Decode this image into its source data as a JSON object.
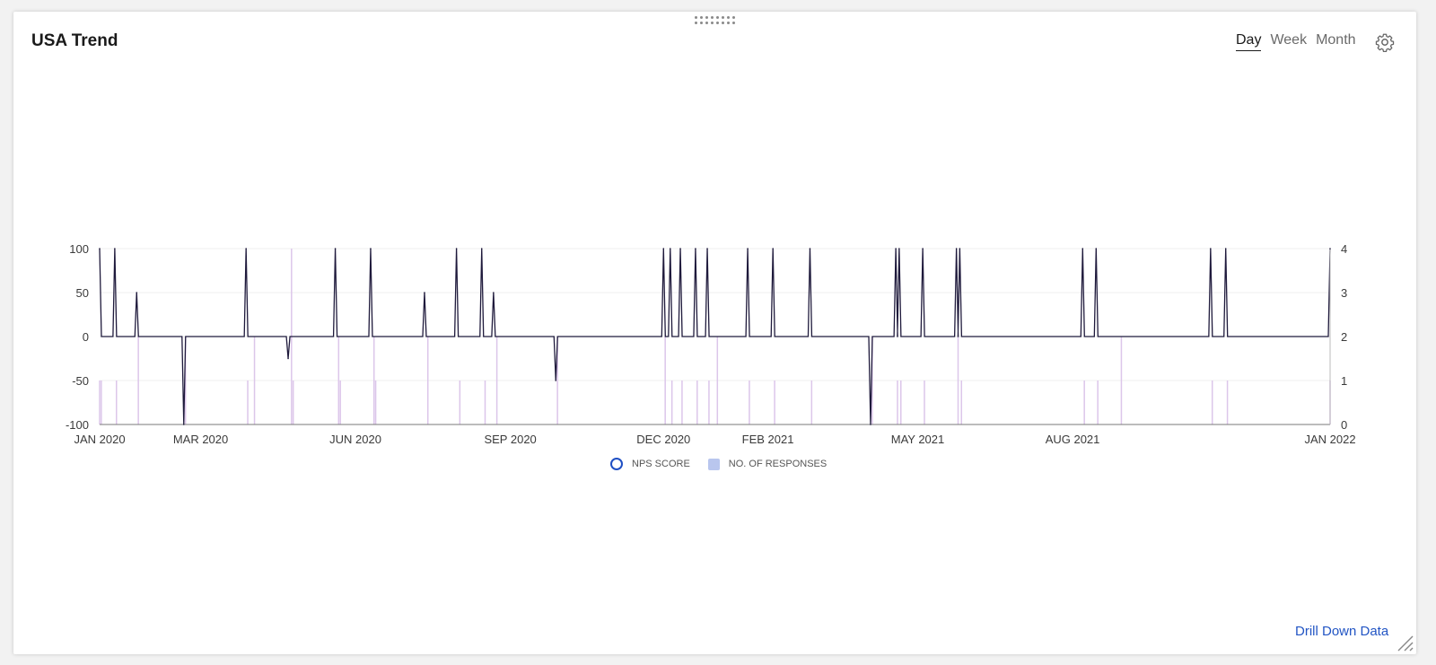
{
  "widget": {
    "title": "USA Trend",
    "periods": [
      {
        "label": "Day",
        "active": true
      },
      {
        "label": "Week",
        "active": false
      },
      {
        "label": "Month",
        "active": false
      }
    ],
    "settings_icon": "gear-icon",
    "drag_icon": "drag-handle-icon",
    "resize_icon": "resize-handle-icon",
    "drill_down_label": "Drill Down Data",
    "colors": {
      "nps_line": "#1f1a3c",
      "responses_bar": "#dcc6ea",
      "legend_nps": "#1f4fc4",
      "legend_responses": "#b9c6ee",
      "link": "#2255c4"
    }
  },
  "chart_data": {
    "type": "line",
    "xlim": [
      "2020-01-01",
      "2022-01-01"
    ],
    "x_ticks": [
      "JAN 2020",
      "MAR 2020",
      "JUN 2020",
      "SEP 2020",
      "DEC 2020",
      "FEB 2021",
      "MAY 2021",
      "AUG 2021",
      "JAN 2022"
    ],
    "x_tick_dates": [
      "2020-01-01",
      "2020-03-01",
      "2020-06-01",
      "2020-09-01",
      "2020-12-01",
      "2021-02-01",
      "2021-05-01",
      "2021-08-01",
      "2022-01-01"
    ],
    "y_left": {
      "ticks": [
        100,
        50,
        0,
        -50,
        -100
      ],
      "ylim": [
        -100,
        100
      ]
    },
    "y_right": {
      "ticks": [
        4,
        3,
        2,
        1,
        0
      ],
      "ylim": [
        0,
        4
      ]
    },
    "legend": [
      "NPS SCORE",
      "NO. OF RESPONSES"
    ],
    "legend_position": "bottom-center",
    "grid": true,
    "series": [
      {
        "name": "NPS SCORE",
        "axis": "left",
        "points": [
          {
            "date": "2020-01-01",
            "value": 100
          },
          {
            "date": "2020-01-10",
            "value": 100
          },
          {
            "date": "2020-01-23",
            "value": 50
          },
          {
            "date": "2020-02-20",
            "value": -100
          },
          {
            "date": "2020-03-28",
            "value": 100
          },
          {
            "date": "2020-04-22",
            "value": -25
          },
          {
            "date": "2020-05-20",
            "value": 100
          },
          {
            "date": "2020-06-10",
            "value": 100
          },
          {
            "date": "2020-07-12",
            "value": 50
          },
          {
            "date": "2020-07-31",
            "value": 100
          },
          {
            "date": "2020-08-15",
            "value": 100
          },
          {
            "date": "2020-08-22",
            "value": 50
          },
          {
            "date": "2020-09-28",
            "value": -50
          },
          {
            "date": "2020-12-01",
            "value": 100
          },
          {
            "date": "2020-12-05",
            "value": 100
          },
          {
            "date": "2020-12-11",
            "value": 100
          },
          {
            "date": "2020-12-20",
            "value": 100
          },
          {
            "date": "2020-12-27",
            "value": 100
          },
          {
            "date": "2021-01-20",
            "value": 100
          },
          {
            "date": "2021-02-04",
            "value": 100
          },
          {
            "date": "2021-02-26",
            "value": 100
          },
          {
            "date": "2021-04-03",
            "value": -100
          },
          {
            "date": "2021-04-18",
            "value": 100
          },
          {
            "date": "2021-04-20",
            "value": 100
          },
          {
            "date": "2021-05-04",
            "value": 100
          },
          {
            "date": "2021-05-24",
            "value": 100
          },
          {
            "date": "2021-05-26",
            "value": 100
          },
          {
            "date": "2021-08-07",
            "value": 100
          },
          {
            "date": "2021-08-15",
            "value": 100
          },
          {
            "date": "2021-10-22",
            "value": 100
          },
          {
            "date": "2021-10-31",
            "value": 100
          },
          {
            "date": "2022-01-01",
            "value": 100
          }
        ]
      },
      {
        "name": "NO. OF RESPONSES",
        "axis": "right",
        "type": "bar",
        "points": [
          {
            "date": "2020-01-01",
            "value": 1
          },
          {
            "date": "2020-01-02",
            "value": 1
          },
          {
            "date": "2020-01-11",
            "value": 1
          },
          {
            "date": "2020-01-24",
            "value": 2
          },
          {
            "date": "2020-02-21",
            "value": 2
          },
          {
            "date": "2020-03-29",
            "value": 1
          },
          {
            "date": "2020-04-02",
            "value": 2
          },
          {
            "date": "2020-04-24",
            "value": 4
          },
          {
            "date": "2020-04-25",
            "value": 1
          },
          {
            "date": "2020-05-22",
            "value": 2
          },
          {
            "date": "2020-05-23",
            "value": 1
          },
          {
            "date": "2020-06-12",
            "value": 2
          },
          {
            "date": "2020-06-13",
            "value": 1
          },
          {
            "date": "2020-07-14",
            "value": 2
          },
          {
            "date": "2020-08-02",
            "value": 1
          },
          {
            "date": "2020-08-17",
            "value": 1
          },
          {
            "date": "2020-08-24",
            "value": 2
          },
          {
            "date": "2020-09-29",
            "value": 2
          },
          {
            "date": "2020-12-02",
            "value": 2
          },
          {
            "date": "2020-12-06",
            "value": 1
          },
          {
            "date": "2020-12-12",
            "value": 1
          },
          {
            "date": "2020-12-21",
            "value": 1
          },
          {
            "date": "2020-12-28",
            "value": 1
          },
          {
            "date": "2021-01-02",
            "value": 2
          },
          {
            "date": "2021-01-21",
            "value": 1
          },
          {
            "date": "2021-02-05",
            "value": 1
          },
          {
            "date": "2021-02-27",
            "value": 1
          },
          {
            "date": "2021-04-04",
            "value": 2
          },
          {
            "date": "2021-04-19",
            "value": 1
          },
          {
            "date": "2021-04-21",
            "value": 1
          },
          {
            "date": "2021-05-05",
            "value": 1
          },
          {
            "date": "2021-05-25",
            "value": 2
          },
          {
            "date": "2021-05-27",
            "value": 1
          },
          {
            "date": "2021-08-08",
            "value": 1
          },
          {
            "date": "2021-08-16",
            "value": 1
          },
          {
            "date": "2021-08-30",
            "value": 2
          },
          {
            "date": "2021-10-23",
            "value": 1
          },
          {
            "date": "2021-11-01",
            "value": 1
          },
          {
            "date": "2022-01-01",
            "value": 1
          }
        ]
      }
    ]
  }
}
